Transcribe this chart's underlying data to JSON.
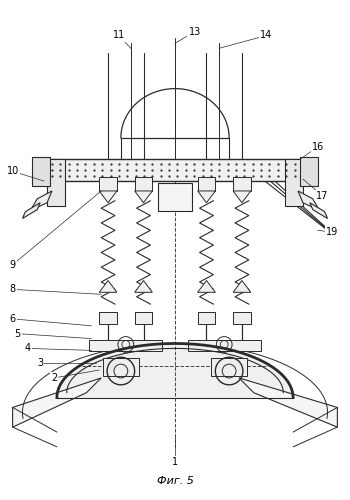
{
  "title": "Фиг. 5",
  "bg": "#ffffff",
  "lc": "#2a2a2a",
  "dc": "#444444",
  "fig_w": 3.5,
  "fig_h": 5.0
}
